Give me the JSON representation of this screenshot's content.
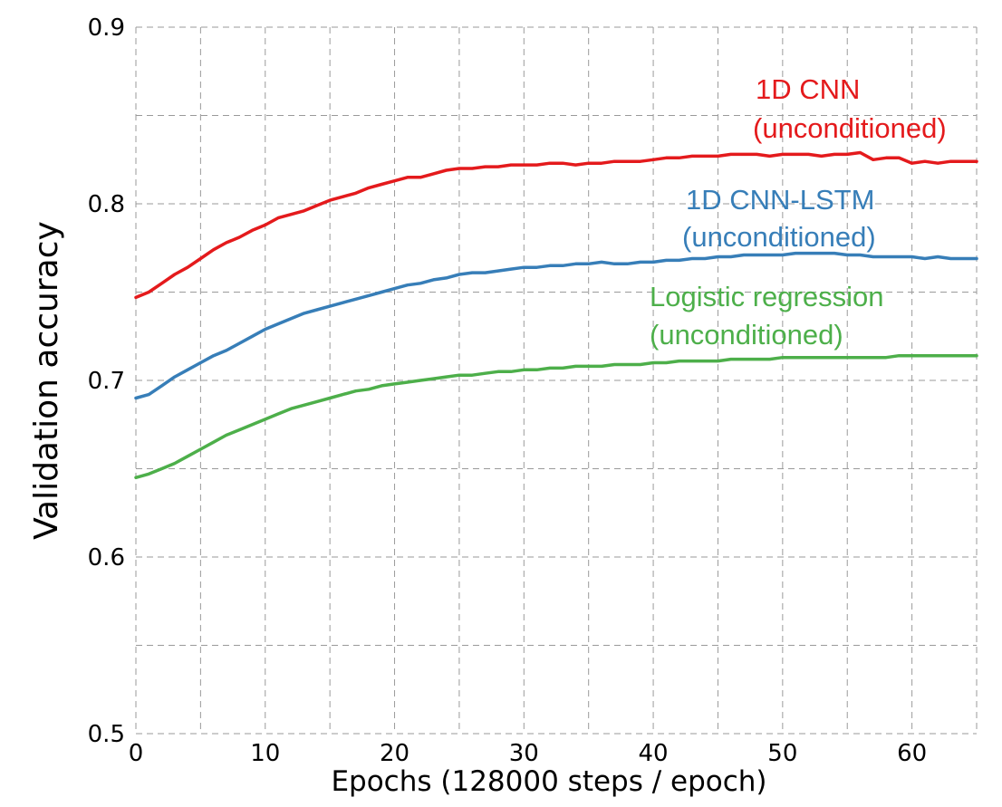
{
  "chart_data": {
    "type": "line",
    "title": "",
    "xlabel": "Epochs (128000 steps / epoch)",
    "ylabel": "Validation accuracy",
    "xlim": [
      0,
      65
    ],
    "ylim": [
      0.5,
      0.9
    ],
    "xticks": [
      0,
      10,
      20,
      30,
      40,
      50,
      60
    ],
    "xtick_labels": [
      "0",
      "10",
      "20",
      "30",
      "40",
      "50",
      "60"
    ],
    "yticks": [
      0.5,
      0.6,
      0.7,
      0.8,
      0.9
    ],
    "ytick_labels": [
      "0.5",
      "0.6",
      "0.7",
      "0.8",
      "0.9"
    ],
    "grid": true,
    "legend": "none (inline annotations)",
    "series": [
      {
        "name": "1D CNN (unconditioned)",
        "color": "#e41a1c",
        "annotation_lines": [
          "1D CNN",
          "(unconditioned)"
        ],
        "x": [
          0,
          1,
          2,
          3,
          4,
          5,
          6,
          7,
          8,
          9,
          10,
          11,
          12,
          13,
          14,
          15,
          16,
          17,
          18,
          19,
          20,
          21,
          22,
          23,
          24,
          25,
          26,
          27,
          28,
          29,
          30,
          31,
          32,
          33,
          34,
          35,
          36,
          37,
          38,
          39,
          40,
          41,
          42,
          43,
          44,
          45,
          46,
          47,
          48,
          49,
          50,
          51,
          52,
          53,
          54,
          55,
          56,
          57,
          58,
          59,
          60,
          61,
          62,
          63,
          64,
          65
        ],
        "y": [
          0.747,
          0.75,
          0.755,
          0.76,
          0.764,
          0.769,
          0.774,
          0.778,
          0.781,
          0.785,
          0.788,
          0.792,
          0.794,
          0.796,
          0.799,
          0.802,
          0.804,
          0.806,
          0.809,
          0.811,
          0.813,
          0.815,
          0.815,
          0.817,
          0.819,
          0.82,
          0.82,
          0.821,
          0.821,
          0.822,
          0.822,
          0.822,
          0.823,
          0.823,
          0.822,
          0.823,
          0.823,
          0.824,
          0.824,
          0.824,
          0.825,
          0.826,
          0.826,
          0.827,
          0.827,
          0.827,
          0.828,
          0.828,
          0.828,
          0.827,
          0.828,
          0.828,
          0.828,
          0.827,
          0.828,
          0.828,
          0.829,
          0.825,
          0.826,
          0.826,
          0.823,
          0.824,
          0.823,
          0.824,
          0.824,
          0.824
        ]
      },
      {
        "name": "1D CNN-LSTM (unconditioned)",
        "color": "#377eb8",
        "annotation_lines": [
          "1D CNN-LSTM",
          "(unconditioned)"
        ],
        "x": [
          0,
          1,
          2,
          3,
          4,
          5,
          6,
          7,
          8,
          9,
          10,
          11,
          12,
          13,
          14,
          15,
          16,
          17,
          18,
          19,
          20,
          21,
          22,
          23,
          24,
          25,
          26,
          27,
          28,
          29,
          30,
          31,
          32,
          33,
          34,
          35,
          36,
          37,
          38,
          39,
          40,
          41,
          42,
          43,
          44,
          45,
          46,
          47,
          48,
          49,
          50,
          51,
          52,
          53,
          54,
          55,
          56,
          57,
          58,
          59,
          60,
          61,
          62,
          63,
          64,
          65
        ],
        "y": [
          0.69,
          0.692,
          0.697,
          0.702,
          0.706,
          0.71,
          0.714,
          0.717,
          0.721,
          0.725,
          0.729,
          0.732,
          0.735,
          0.738,
          0.74,
          0.742,
          0.744,
          0.746,
          0.748,
          0.75,
          0.752,
          0.754,
          0.755,
          0.757,
          0.758,
          0.76,
          0.761,
          0.761,
          0.762,
          0.763,
          0.764,
          0.764,
          0.765,
          0.765,
          0.766,
          0.766,
          0.767,
          0.766,
          0.766,
          0.767,
          0.767,
          0.768,
          0.768,
          0.769,
          0.769,
          0.77,
          0.77,
          0.771,
          0.771,
          0.771,
          0.771,
          0.772,
          0.772,
          0.772,
          0.772,
          0.771,
          0.771,
          0.77,
          0.77,
          0.77,
          0.77,
          0.769,
          0.77,
          0.769,
          0.769,
          0.769
        ]
      },
      {
        "name": "Logistic regression (unconditioned)",
        "color": "#4daf4a",
        "annotation_lines": [
          "Logistic regression",
          "(unconditioned)"
        ],
        "x": [
          0,
          1,
          2,
          3,
          4,
          5,
          6,
          7,
          8,
          9,
          10,
          11,
          12,
          13,
          14,
          15,
          16,
          17,
          18,
          19,
          20,
          21,
          22,
          23,
          24,
          25,
          26,
          27,
          28,
          29,
          30,
          31,
          32,
          33,
          34,
          35,
          36,
          37,
          38,
          39,
          40,
          41,
          42,
          43,
          44,
          45,
          46,
          47,
          48,
          49,
          50,
          51,
          52,
          53,
          54,
          55,
          56,
          57,
          58,
          59,
          60,
          61,
          62,
          63,
          64,
          65
        ],
        "y": [
          0.645,
          0.647,
          0.65,
          0.653,
          0.657,
          0.661,
          0.665,
          0.669,
          0.672,
          0.675,
          0.678,
          0.681,
          0.684,
          0.686,
          0.688,
          0.69,
          0.692,
          0.694,
          0.695,
          0.697,
          0.698,
          0.699,
          0.7,
          0.701,
          0.702,
          0.703,
          0.703,
          0.704,
          0.705,
          0.705,
          0.706,
          0.706,
          0.707,
          0.707,
          0.708,
          0.708,
          0.708,
          0.709,
          0.709,
          0.709,
          0.71,
          0.71,
          0.711,
          0.711,
          0.711,
          0.711,
          0.712,
          0.712,
          0.712,
          0.712,
          0.713,
          0.713,
          0.713,
          0.713,
          0.713,
          0.713,
          0.713,
          0.713,
          0.713,
          0.714,
          0.714,
          0.714,
          0.714,
          0.714,
          0.714,
          0.714
        ]
      }
    ]
  }
}
